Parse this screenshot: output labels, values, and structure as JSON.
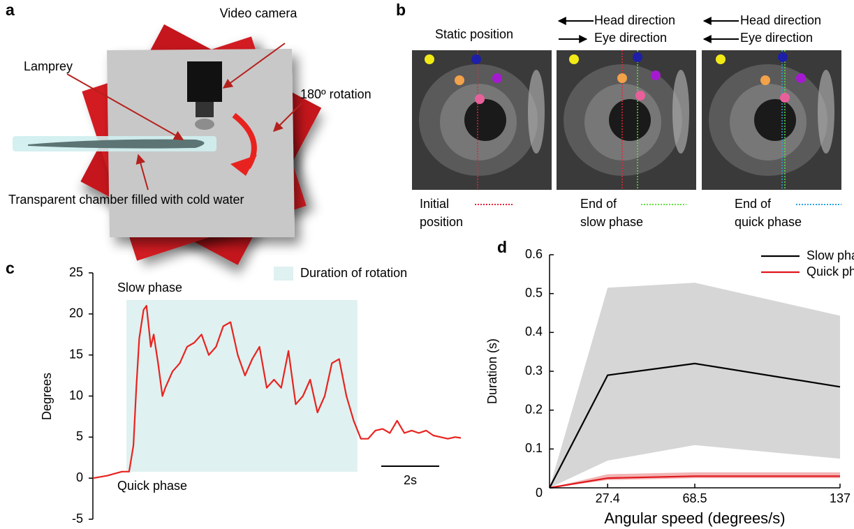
{
  "panel_a": {
    "label": "a",
    "annotations": [
      "Video camera",
      "Lamprey",
      "180º rotation",
      "Transparent chamber filled with cold water"
    ]
  },
  "panel_b": {
    "label": "b",
    "headers": [
      "Static position",
      "Head direction",
      "Eye direction",
      "Head direction",
      "Eye direction"
    ],
    "legend": [
      [
        "Initial",
        "position"
      ],
      [
        "End of",
        "slow phase"
      ],
      [
        "End of",
        "quick phase"
      ]
    ]
  },
  "chart_data": [
    {
      "type": "line",
      "label": "c",
      "ylabel": "Degrees",
      "annotations": [
        "Slow phase",
        "Quick phase"
      ],
      "highlight": {
        "label": "Duration of rotation",
        "start": 1.16,
        "end": 9.13,
        "color": "#dff1f0"
      },
      "scalebar": {
        "value": 2,
        "label": "2s"
      },
      "color": "#e8231f",
      "x": [
        0,
        0.5,
        1.0,
        1.25,
        1.4,
        1.5,
        1.6,
        1.75,
        1.85,
        2.0,
        2.1,
        2.25,
        2.4,
        2.5,
        2.75,
        3.0,
        3.25,
        3.5,
        3.75,
        4.0,
        4.25,
        4.5,
        4.75,
        5.0,
        5.25,
        5.5,
        5.75,
        6.0,
        6.25,
        6.5,
        6.75,
        7.0,
        7.25,
        7.5,
        7.75,
        8.0,
        8.25,
        8.5,
        8.75,
        9.0,
        9.25,
        9.5,
        9.75,
        10.0,
        10.25,
        10.5,
        10.75,
        11.0,
        11.25,
        11.5,
        11.75,
        12.0,
        12.25,
        12.5,
        12.7
      ],
      "values": [
        0,
        0.3,
        0.8,
        0.8,
        4,
        11,
        17,
        20.5,
        21,
        16,
        17.5,
        14,
        10,
        11,
        13,
        14,
        16,
        16.5,
        17.5,
        15,
        16,
        18.5,
        19,
        15,
        12.5,
        14.5,
        16,
        11,
        12,
        11,
        15.5,
        9,
        10,
        12,
        8,
        10,
        14,
        14.5,
        10,
        7,
        4.8,
        4.8,
        5.8,
        6,
        5.5,
        7,
        5.5,
        5.8,
        5.5,
        5.8,
        5.2,
        5,
        4.8,
        5,
        4.9
      ],
      "xlim": [
        0,
        12.7
      ],
      "ylim": [
        -5,
        25
      ],
      "yticks": [
        -5,
        0,
        5,
        10,
        15,
        20,
        25
      ]
    },
    {
      "type": "band-line",
      "label": "d",
      "xlabel": "Angular speed (degrees/s)",
      "ylabel": "Duration (s)",
      "x": [
        0,
        27.4,
        68.5,
        137
      ],
      "series": [
        {
          "name": "Slow phase",
          "color": "#000000",
          "band_color": "#d6d6d6",
          "values": [
            0,
            0.29,
            0.32,
            0.26
          ],
          "lower": [
            0,
            0.07,
            0.11,
            0.075
          ],
          "upper": [
            0,
            0.515,
            0.528,
            0.443
          ]
        },
        {
          "name": "Quick phase",
          "color": "#e0161b",
          "band_color": "#f3b4b4",
          "values": [
            0,
            0.025,
            0.03,
            0.03
          ],
          "lower": [
            0,
            0.02,
            0.025,
            0.025
          ],
          "upper": [
            0,
            0.035,
            0.04,
            0.04
          ]
        }
      ],
      "xlim": [
        0,
        137
      ],
      "xticks": [
        27.4,
        68.5,
        137
      ],
      "ylim": [
        0,
        0.6
      ],
      "yticks": [
        0,
        0.1,
        0.2,
        0.3,
        0.4,
        0.5,
        0.6
      ]
    }
  ]
}
